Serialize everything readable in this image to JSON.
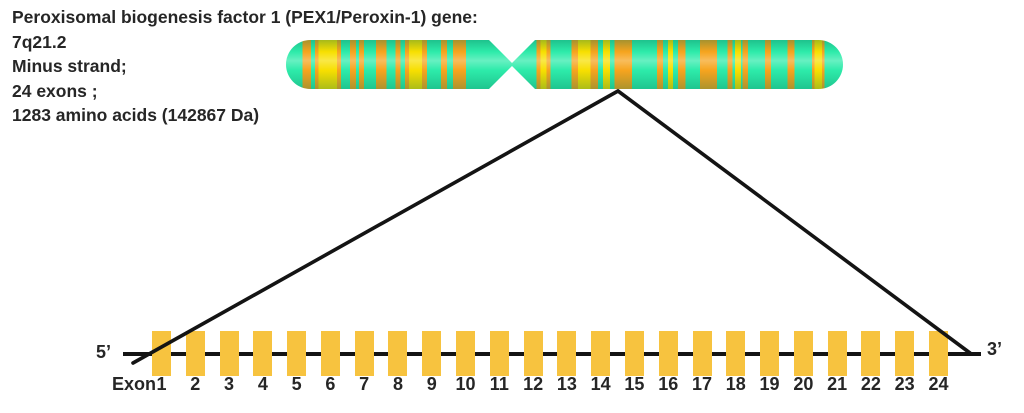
{
  "gene_info": {
    "title": "Peroxisomal biogenesis factor 1 (PEX1/Peroxin-1) gene:",
    "locus": "7q21.2",
    "strand": "Minus strand;",
    "exon_count": "24 exons ;",
    "protein": "1283 amino acids (142867 Da)"
  },
  "chromosome": {
    "base_color": "#2debaa",
    "band_colors": {
      "orange": "#f6a41e",
      "yellow": "#f7df00"
    },
    "centromere_pos": 40.6,
    "bands": [
      {
        "x": 3.0,
        "w": 1.5,
        "c": "orange"
      },
      {
        "x": 5.2,
        "w": 0.6,
        "c": "orange"
      },
      {
        "x": 5.8,
        "w": 3.4,
        "c": "yellow"
      },
      {
        "x": 9.2,
        "w": 0.7,
        "c": "orange"
      },
      {
        "x": 11.5,
        "w": 1.1,
        "c": "orange"
      },
      {
        "x": 13.1,
        "w": 0.9,
        "c": "orange"
      },
      {
        "x": 16.2,
        "w": 1.8,
        "c": "orange"
      },
      {
        "x": 19.7,
        "w": 0.9,
        "c": "orange"
      },
      {
        "x": 21.4,
        "w": 0.7,
        "c": "orange"
      },
      {
        "x": 22.1,
        "w": 2.3,
        "c": "yellow"
      },
      {
        "x": 24.4,
        "w": 0.9,
        "c": "orange"
      },
      {
        "x": 27.8,
        "w": 1.1,
        "c": "orange"
      },
      {
        "x": 30.0,
        "w": 2.3,
        "c": "orange"
      },
      {
        "x": 45.0,
        "w": 0.7,
        "c": "orange"
      },
      {
        "x": 45.7,
        "w": 1.1,
        "c": "yellow"
      },
      {
        "x": 46.8,
        "w": 0.7,
        "c": "orange"
      },
      {
        "x": 51.3,
        "w": 1.1,
        "c": "orange"
      },
      {
        "x": 52.4,
        "w": 2.3,
        "c": "yellow"
      },
      {
        "x": 54.7,
        "w": 1.3,
        "c": "orange"
      },
      {
        "x": 56.9,
        "w": 1.3,
        "c": "yellow"
      },
      {
        "x": 59.0,
        "w": 3.1,
        "c": "orange"
      },
      {
        "x": 66.6,
        "w": 1.1,
        "c": "orange"
      },
      {
        "x": 68.6,
        "w": 0.9,
        "c": "yellow"
      },
      {
        "x": 70.4,
        "w": 1.3,
        "c": "orange"
      },
      {
        "x": 74.3,
        "w": 3.1,
        "c": "orange"
      },
      {
        "x": 79.3,
        "w": 0.9,
        "c": "orange"
      },
      {
        "x": 80.6,
        "w": 1.1,
        "c": "yellow"
      },
      {
        "x": 82.0,
        "w": 0.9,
        "c": "orange"
      },
      {
        "x": 86.0,
        "w": 1.1,
        "c": "orange"
      },
      {
        "x": 90.0,
        "w": 1.3,
        "c": "orange"
      },
      {
        "x": 94.4,
        "w": 0.5,
        "c": "orange"
      },
      {
        "x": 94.9,
        "w": 1.3,
        "c": "yellow"
      },
      {
        "x": 96.2,
        "w": 0.5,
        "c": "orange"
      }
    ]
  },
  "gene_track": {
    "five_prime_label": "5’",
    "three_prime_label": "3’",
    "exon_prefix": "Exon",
    "exon_color": "#f7c33f",
    "exons": [
      "1",
      "2",
      "3",
      "4",
      "5",
      "6",
      "7",
      "8",
      "9",
      "10",
      "11",
      "12",
      "13",
      "14",
      "15",
      "16",
      "17",
      "18",
      "19",
      "20",
      "21",
      "22",
      "23",
      "24"
    ]
  }
}
